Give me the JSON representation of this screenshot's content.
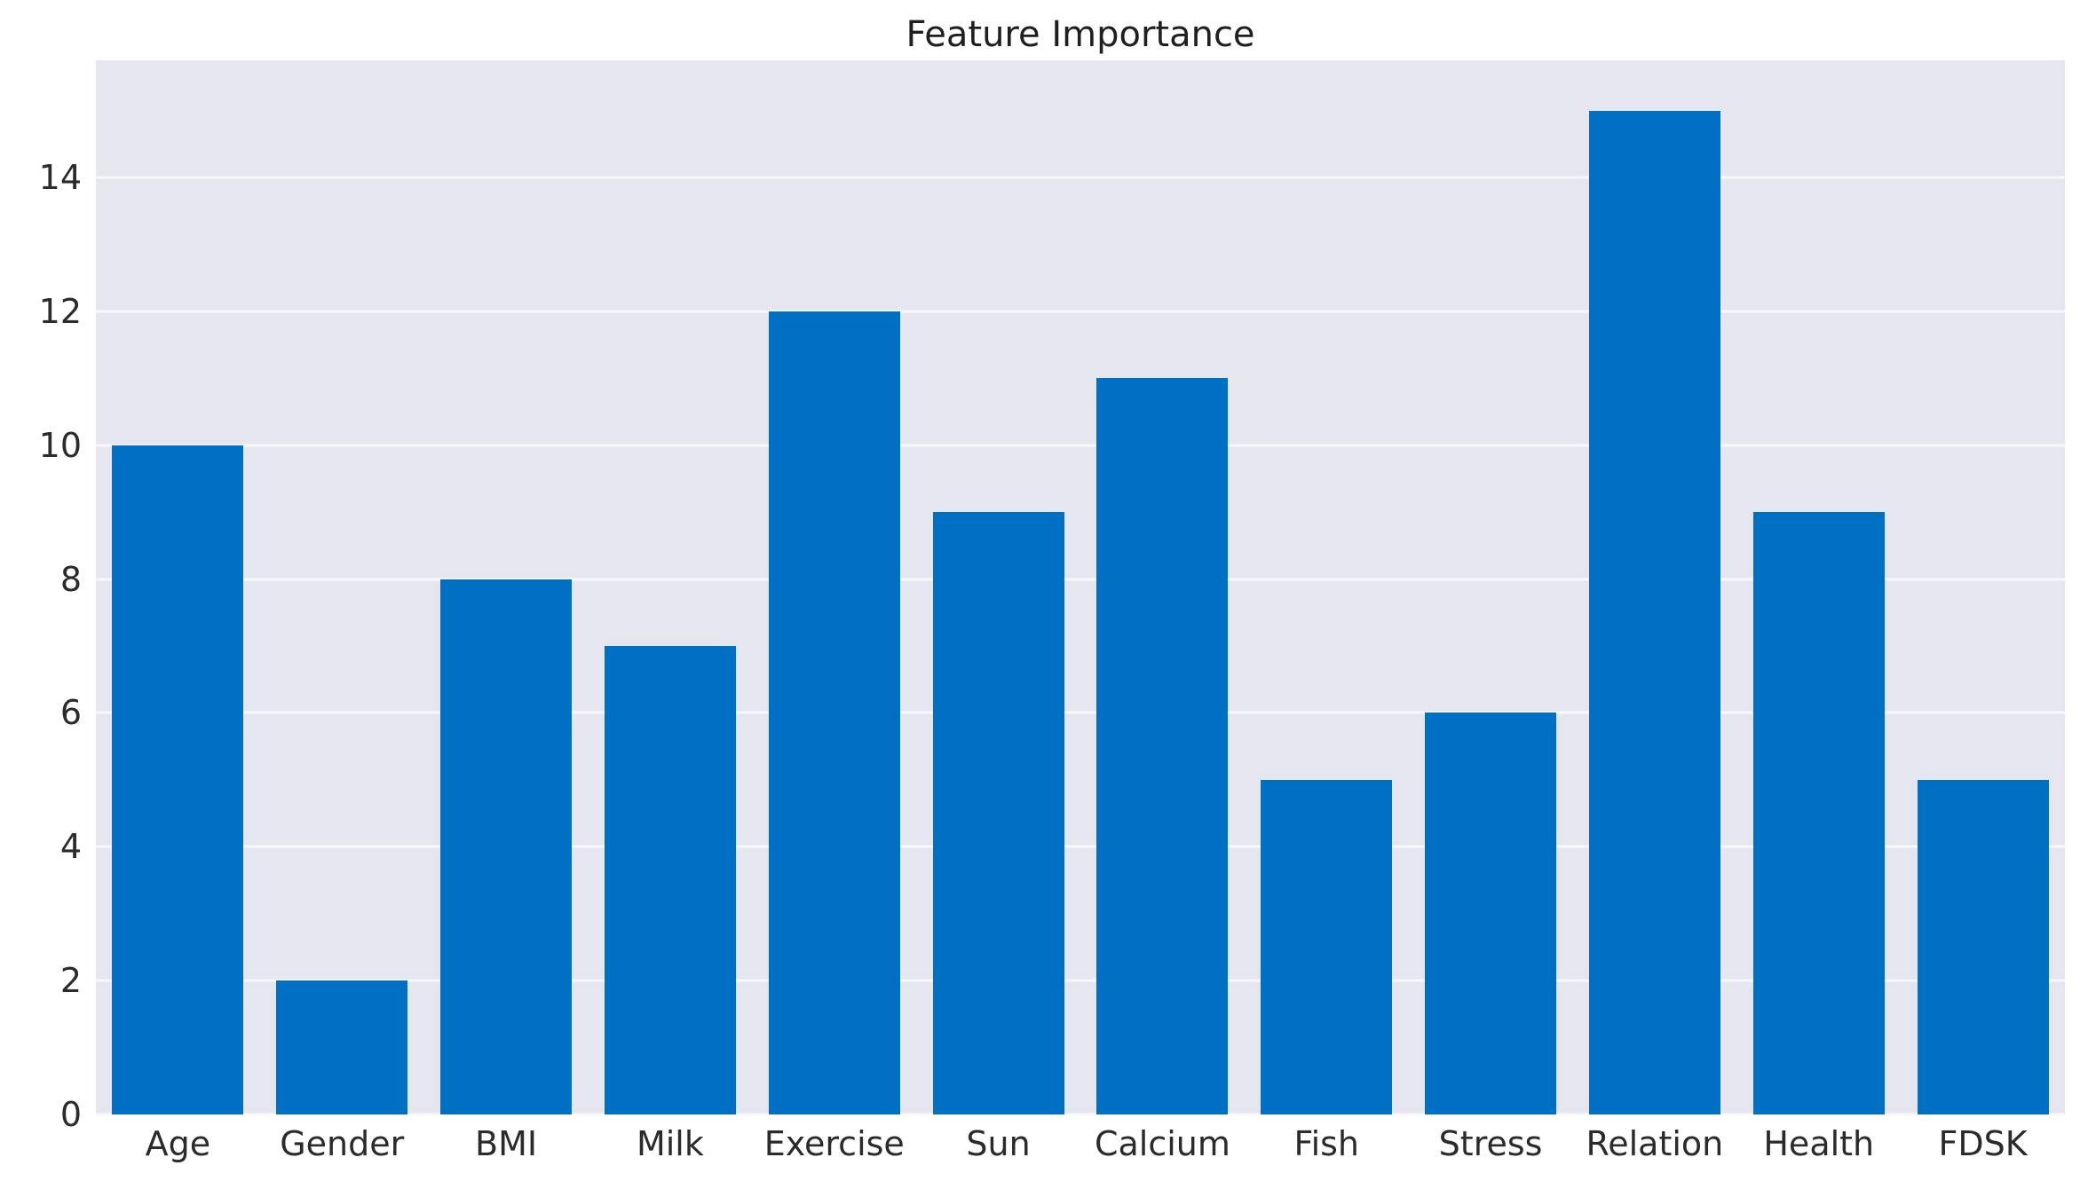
{
  "colors": {
    "bar": "#0070c4",
    "plot_background": "#e6e6f1",
    "gridline": "#f8f8fc",
    "text": "#2b2b2b",
    "title_text": "#1f1f1f",
    "page_background": "#ffffff"
  },
  "chart_data": {
    "type": "bar",
    "title": "Feature Importance",
    "categories": [
      "Age",
      "Gender",
      "BMI",
      "Milk",
      "Exercise",
      "Sun",
      "Calcium",
      "Fish",
      "Stress",
      "Relation",
      "Health",
      "FDSK"
    ],
    "values": [
      10,
      2,
      8,
      7,
      12,
      9,
      11,
      5,
      6,
      15,
      9,
      5
    ],
    "xlabel": "",
    "ylabel": "",
    "yticks": [
      0,
      2,
      4,
      6,
      8,
      10,
      12,
      14
    ],
    "ylim": [
      0,
      15.75
    ],
    "bar_width_fraction": 0.8,
    "grid": "horizontal",
    "legend": "none"
  }
}
